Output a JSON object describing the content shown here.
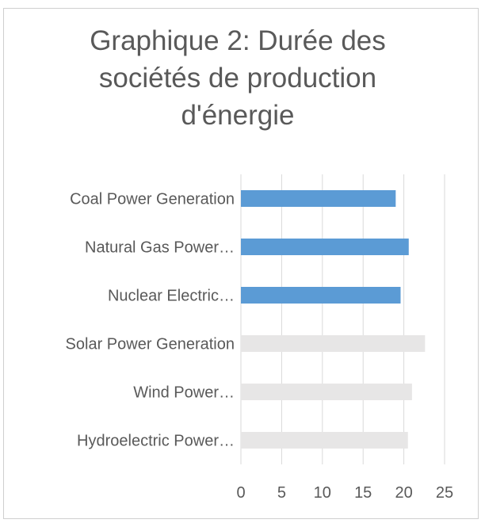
{
  "chart_data": {
    "type": "bar",
    "orientation": "horizontal",
    "title": "Graphique 2: Durée des sociétés de production d'énergie",
    "title_lines": [
      "Graphique 2: Durée des",
      "sociétés de production",
      "d'énergie"
    ],
    "categories": [
      "Coal Power Generation",
      "Natural Gas Power…",
      "Nuclear Electric…",
      "Solar Power Generation",
      "Wind Power…",
      "Hydroelectric Power…"
    ],
    "values": [
      19,
      20.6,
      19.6,
      22.6,
      21,
      20.5
    ],
    "bar_colors": [
      "#5b9bd5",
      "#5b9bd5",
      "#5b9bd5",
      "#e7e6e6",
      "#e7e6e6",
      "#e7e6e6"
    ],
    "xlim": [
      0,
      25
    ],
    "xticks": [
      "0",
      "5",
      "10",
      "15",
      "20",
      "25"
    ],
    "xlabel": "",
    "ylabel": "",
    "grid": true,
    "legend": "none",
    "colors": {
      "highlight": "#5b9bd5",
      "muted": "#e7e6e6",
      "grid": "#d9d9d9",
      "text": "#595959"
    }
  }
}
